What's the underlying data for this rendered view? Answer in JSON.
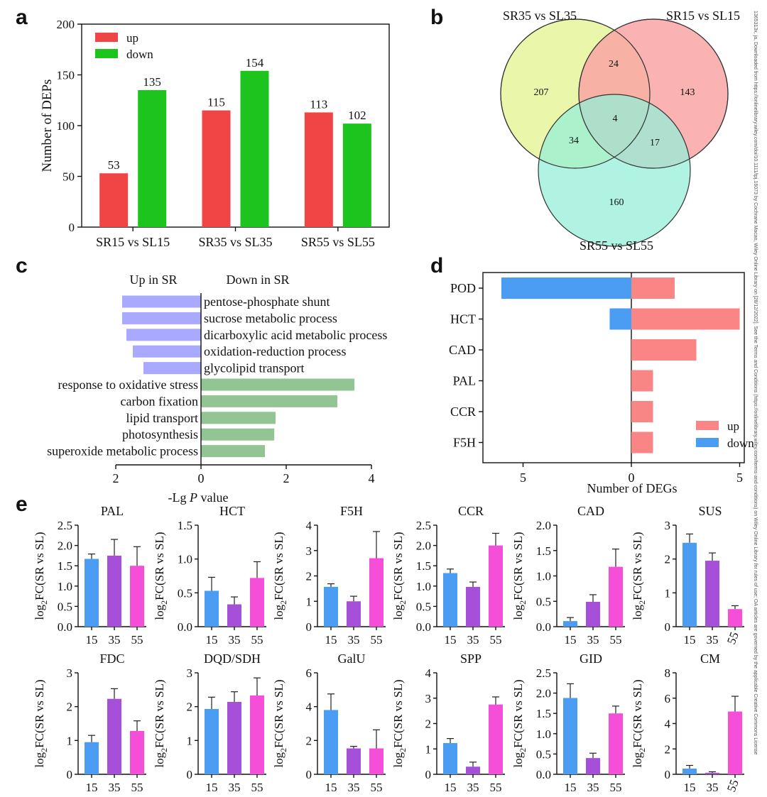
{
  "panels": {
    "a": "a",
    "b": "b",
    "c": "c",
    "d": "d",
    "e": "e"
  },
  "side_note": "1365313x, ja, Downloaded from https://onlinelibrary.wiley.com/doi/10.1111/tpj.16073 by Cochrane Macao, Wiley Online Library on [28/12/2022]. See the Terms and Conditions (https://onlinelibrary.wiley.com/terms-and-conditions) on Wiley Online Library for rules of use; OA articles are governed by the applicable Creative Commons License",
  "colors": {
    "up": "#f04545",
    "down": "#1ec41e",
    "venn_a": "#e6f59a",
    "venn_b": "#f9a5a5",
    "venn_c": "#95efd8",
    "purple_bar": "#a9a9ff",
    "green_bar": "#93c493",
    "d_up": "#f98585",
    "d_down": "#4b9cf3",
    "e15": "#4b9cf3",
    "e35": "#a64fd8",
    "e55": "#f54fd9"
  },
  "chart_data": [
    {
      "id": "a",
      "type": "bar",
      "ylabel": "Number of DEPs",
      "ylim": [
        0,
        200
      ],
      "yticks": [
        "0",
        "50",
        "100",
        "150",
        "200"
      ],
      "categories": [
        "SR15 vs SL15",
        "SR35 vs SL35",
        "SR55 vs SL55"
      ],
      "series": [
        {
          "name": "up",
          "values": [
            53,
            115,
            113
          ],
          "labels": [
            "53",
            "115",
            "113"
          ]
        },
        {
          "name": "down",
          "values": [
            135,
            154,
            102
          ],
          "labels": [
            "135",
            "154",
            "102"
          ]
        }
      ],
      "legend": [
        "up",
        "down"
      ]
    },
    {
      "id": "b",
      "type": "venn",
      "sets": [
        "SR35 vs SL35",
        "SR15 vs SL15",
        "SR55 vs SL55"
      ],
      "regions": {
        "a_only": "207",
        "b_only": "143",
        "c_only": "160",
        "ab": "24",
        "ac": "34",
        "bc": "17",
        "abc": "4"
      }
    },
    {
      "id": "c",
      "type": "bar",
      "orientation": "horizontal",
      "header_left": "Up in SR",
      "header_right": "Down in SR",
      "xlabel_prefix": "-Lg ",
      "xlabel_italic": "P",
      "xlabel_suffix": " value",
      "xticks": [
        "2",
        "0",
        "2",
        "4"
      ],
      "terms": [
        {
          "label": "pentose-phosphate shunt",
          "value": -1.85
        },
        {
          "label": "sucrose metabolic process",
          "value": -1.85
        },
        {
          "label": "dicarboxylic acid metabolic process",
          "value": -1.75
        },
        {
          "label": "oxidation-reduction process",
          "value": -1.6
        },
        {
          "label": "glycolipid transport",
          "value": -1.35
        },
        {
          "label": "response to oxidative stress",
          "value": 3.6
        },
        {
          "label": "carbon fixation",
          "value": 3.2
        },
        {
          "label": "lipid transport",
          "value": 1.75
        },
        {
          "label": "photosynthesis",
          "value": 1.72
        },
        {
          "label": "superoxide metabolic process",
          "value": 1.5
        }
      ]
    },
    {
      "id": "d",
      "type": "bar",
      "orientation": "horizontal",
      "xlabel": "Number of DEGs",
      "xticks": [
        "5",
        "0",
        "5"
      ],
      "categories": [
        "POD",
        "HCT",
        "CAD",
        "PAL",
        "CCR",
        "F5H"
      ],
      "series": [
        {
          "name": "up",
          "values": [
            2,
            5,
            3,
            1,
            1,
            1
          ]
        },
        {
          "name": "down",
          "values": [
            6,
            1,
            0,
            0,
            0,
            0
          ]
        }
      ],
      "legend": [
        "up",
        "down"
      ]
    },
    {
      "id": "e",
      "type": "bar",
      "ylabel_pre": "log",
      "ylabel_sub": "2",
      "ylabel_post": "FC(SR vs SL)",
      "categories": [
        "15",
        "35",
        "55"
      ],
      "subplots": [
        {
          "title": "PAL",
          "ymax": 2.5,
          "ticks": [
            "0.0",
            "0.5",
            "1.0",
            "1.5",
            "2.0",
            "2.5"
          ],
          "values": [
            1.67,
            1.75,
            1.5
          ],
          "errors": [
            0.12,
            0.4,
            0.47
          ]
        },
        {
          "title": "HCT",
          "ymax": 1.5,
          "ticks": [
            "0.0",
            "0.5",
            "1.0",
            "1.5"
          ],
          "values": [
            0.53,
            0.33,
            0.72
          ],
          "errors": [
            0.2,
            0.11,
            0.24
          ]
        },
        {
          "title": "F5H",
          "ymax": 4,
          "ticks": [
            "0",
            "1",
            "2",
            "3",
            "4"
          ],
          "values": [
            1.57,
            1.0,
            2.7
          ],
          "errors": [
            0.12,
            0.2,
            1.05
          ]
        },
        {
          "title": "CCR",
          "ymax": 2.5,
          "ticks": [
            "0.0",
            "0.5",
            "1.0",
            "1.5",
            "2.0",
            "2.5"
          ],
          "values": [
            1.32,
            0.98,
            2.0
          ],
          "errors": [
            0.1,
            0.12,
            0.3
          ]
        },
        {
          "title": "CAD",
          "ymax": 2.0,
          "ticks": [
            "0.0",
            "0.5",
            "1.0",
            "1.5",
            "2.0"
          ],
          "values": [
            0.11,
            0.49,
            1.18
          ],
          "errors": [
            0.07,
            0.14,
            0.35
          ]
        },
        {
          "title": "SUS",
          "ymax": 3,
          "ticks": [
            "0",
            "1",
            "2",
            "3"
          ],
          "values": [
            2.48,
            1.95,
            0.52
          ],
          "errors": [
            0.26,
            0.23,
            0.1
          ]
        },
        {
          "title": "FDC",
          "ymax": 3,
          "ticks": [
            "0",
            "1",
            "2",
            "3"
          ],
          "values": [
            0.95,
            2.23,
            1.28
          ],
          "errors": [
            0.2,
            0.3,
            0.3
          ]
        },
        {
          "title": "DQD/SDH",
          "ymax": 3,
          "ticks": [
            "0",
            "1",
            "2",
            "3"
          ],
          "values": [
            1.93,
            2.14,
            2.33
          ],
          "errors": [
            0.35,
            0.3,
            0.52
          ]
        },
        {
          "title": "GalU",
          "ymax": 6,
          "ticks": [
            "0",
            "2",
            "4",
            "6"
          ],
          "values": [
            3.8,
            1.53,
            1.53
          ],
          "errors": [
            0.95,
            0.12,
            1.1
          ]
        },
        {
          "title": "SPP",
          "ymax": 4,
          "ticks": [
            "0",
            "1",
            "2",
            "3",
            "4"
          ],
          "values": [
            1.23,
            0.3,
            2.75
          ],
          "errors": [
            0.18,
            0.18,
            0.3
          ]
        },
        {
          "title": "GID",
          "ymax": 2.5,
          "ticks": [
            "0.0",
            "0.5",
            "1.0",
            "1.5",
            "2.0",
            "2.5"
          ],
          "values": [
            1.88,
            0.4,
            1.5
          ],
          "errors": [
            0.35,
            0.12,
            0.18
          ]
        },
        {
          "title": "CM",
          "ymax": 8,
          "ticks": [
            "0",
            "2",
            "4",
            "6",
            "8"
          ],
          "values": [
            0.45,
            0.12,
            4.95
          ],
          "errors": [
            0.25,
            0.08,
            1.2
          ]
        }
      ]
    }
  ]
}
